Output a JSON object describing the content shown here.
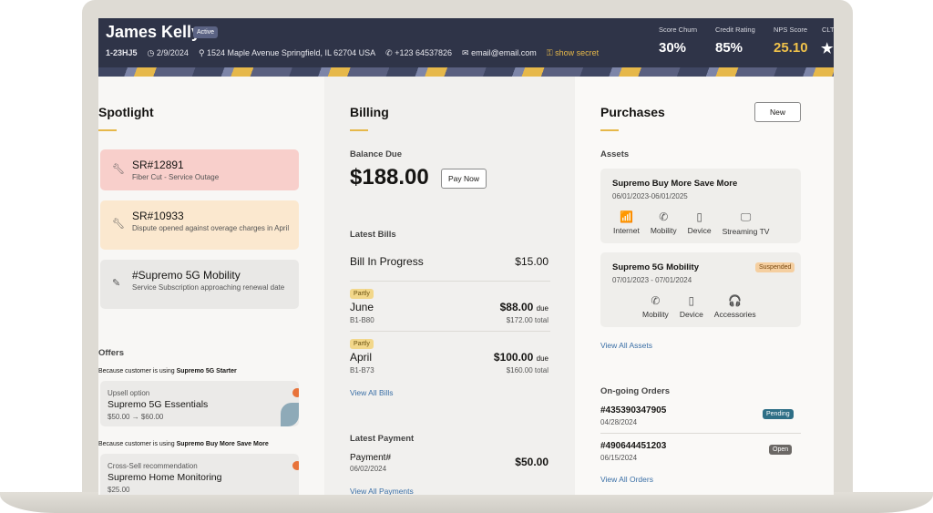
{
  "header": {
    "name": "James Kelly",
    "status": "Active",
    "id": "1-23HJ5",
    "date": "2/9/2024",
    "address": "1524 Maple Avenue Springfield, IL 62704 USA",
    "phone": "+123 64537826",
    "email": "email@email.com",
    "secret": "show secret",
    "kpis": [
      {
        "label": "Score Churn",
        "value": "30%"
      },
      {
        "label": "Credit Rating",
        "value": "85%"
      },
      {
        "label": "NPS Score",
        "value": "25.10",
        "color": "#f0c24a"
      },
      {
        "label": "CLT",
        "value": "★"
      }
    ]
  },
  "spotlight": {
    "title": "Spotlight",
    "items": [
      {
        "title": "SR#12891",
        "desc": "Fiber Cut - Service Outage",
        "icon": "wrench-icon",
        "color": "#f8cfcb"
      },
      {
        "title": "SR#10933",
        "desc": "Dispute opened against overage charges in April",
        "icon": "wrench-icon",
        "color": "#fbe8cf"
      },
      {
        "title": "#Supremo 5G Mobility",
        "desc": "Service Subscription approaching renewal date",
        "icon": "document-edit-icon",
        "color": "#e9e8e6"
      }
    ],
    "offers_title": "Offers",
    "offers": [
      {
        "reason_prefix": "Because customer is using ",
        "reason_plan": "Supremo 5G Starter",
        "type": "Upsell option",
        "name": "Supremo 5G Essentials",
        "price": "$50.00 → $60.00"
      },
      {
        "reason_prefix": "Because customer is using ",
        "reason_plan": "Supremo Buy More Save More",
        "type": "Cross-Sell recommendation",
        "name": "Supremo Home Monitoring",
        "price": "$25.00"
      }
    ]
  },
  "billing": {
    "title": "Billing",
    "balance_label": "Balance Due",
    "balance": "$188.00",
    "pay_now": "Pay Now",
    "latest_bills": "Latest Bills",
    "bills": [
      {
        "name": "Bill In Progress",
        "amount": "$15.00"
      },
      {
        "badge": "Partly",
        "name": "June",
        "code": "B1-B80",
        "due": "$88.00",
        "due_suffix": "due",
        "total": "$172.00 total"
      },
      {
        "badge": "Partly",
        "name": "April",
        "code": "B1-B73",
        "due": "$100.00",
        "due_suffix": "due",
        "total": "$160.00 total"
      }
    ],
    "view_all_bills": "View All Bills",
    "latest_payment": "Latest Payment",
    "payment_label": "Payment#",
    "payment_date": "06/02/2024",
    "payment_amount": "$50.00",
    "view_all_payments": "View All Payments"
  },
  "purchases": {
    "title": "Purchases",
    "new": "New",
    "assets_label": "Assets",
    "assets": [
      {
        "name": "Supremo Buy More Save More",
        "dates": "06/01/2023-06/01/2025",
        "services": [
          {
            "icon": "wifi-icon",
            "glyph": "📶",
            "label": "Internet"
          },
          {
            "icon": "phone-icon",
            "glyph": "✆",
            "label": "Mobility"
          },
          {
            "icon": "tablet-icon",
            "glyph": "▯",
            "label": "Device"
          },
          {
            "icon": "monitor-icon",
            "glyph": "🖵",
            "label": "Streaming TV"
          }
        ]
      },
      {
        "name": "Supremo 5G Mobility",
        "dates": "07/01/2023 - 07/01/2024",
        "status": "Suspended",
        "services": [
          {
            "icon": "phone-icon",
            "glyph": "✆",
            "label": "Mobility"
          },
          {
            "icon": "tablet-icon",
            "glyph": "▯",
            "label": "Device"
          },
          {
            "icon": "headphones-icon",
            "glyph": "🎧",
            "label": "Accessories"
          }
        ]
      }
    ],
    "view_all_assets": "View All Assets",
    "orders_label": "On-going Orders",
    "orders": [
      {
        "id": "#435390347905",
        "date": "04/28/2024",
        "status": "Pending",
        "color": "#2e6f86"
      },
      {
        "id": "#490644451203",
        "date": "06/15/2024",
        "status": "Open",
        "color": "#6b6865"
      }
    ],
    "view_all_orders": "View All Orders"
  }
}
